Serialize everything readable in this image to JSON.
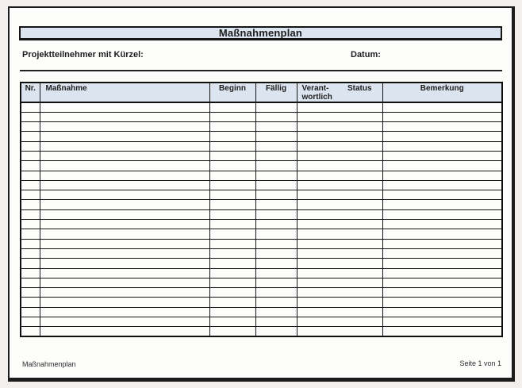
{
  "document": {
    "title": "Maßnahmenplan",
    "fields": {
      "participants_label": "Projektteilnehmer mit Kürzel:",
      "participants_value": "",
      "date_label": "Datum:",
      "date_value": ""
    },
    "table": {
      "headers": {
        "nr": "Nr.",
        "massnahme": "Maßnahme",
        "beginn": "Beginn",
        "faellig": "Fällig",
        "verantwortlich_line1": "Verant-",
        "verantwortlich_line2": "wortlich",
        "status": "Status",
        "bemerkung": "Bemerkung"
      },
      "columns_order": [
        "nr",
        "massnahme",
        "beginn",
        "faellig",
        "verantwortlich_status",
        "bemerkung"
      ],
      "row_count": 24,
      "cell_values": []
    },
    "footer": {
      "left": "Maßnahmenplan",
      "right": "Seite 1 von 1"
    }
  },
  "colors": {
    "header_fill": "#dce4ef",
    "line": "#161616",
    "page_bg": "#fdfdfc",
    "canvas_bg": "#f1f0ee"
  }
}
